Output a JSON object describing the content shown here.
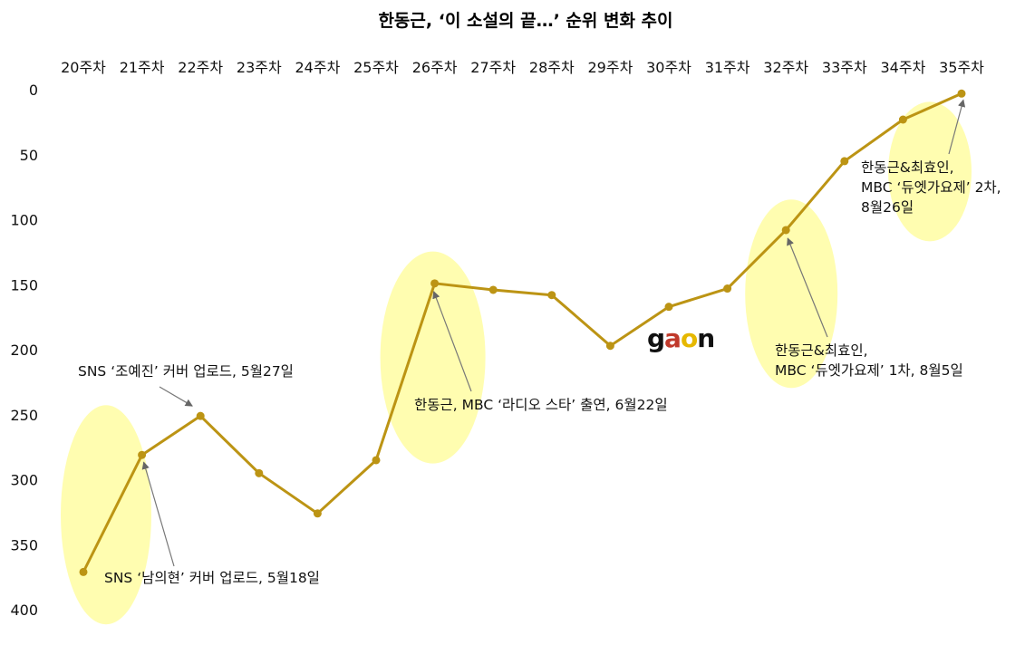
{
  "chart_data": {
    "type": "line",
    "title": "한동근, ‘이 소설의 끝…’ 순위 변화 추이",
    "categories": [
      "20주차",
      "21주차",
      "22주차",
      "23주차",
      "24주차",
      "25주차",
      "26주차",
      "27주차",
      "28주차",
      "29주차",
      "30주차",
      "31주차",
      "32주차",
      "33주차",
      "34주차",
      "35주차"
    ],
    "series": [
      {
        "values": [
          371,
          281,
          251,
          295,
          326,
          285,
          149,
          154,
          158,
          197,
          167,
          153,
          108,
          55,
          23,
          3
        ]
      }
    ],
    "ylim": [
      0,
      400
    ],
    "yticks": [
      0,
      50,
      100,
      150,
      200,
      250,
      300,
      350,
      400
    ],
    "y_inverted": true,
    "x_axis_position": "top",
    "grid": false,
    "line_color": "#BC9414",
    "highlight_color": "#FFFDB0",
    "highlights": [
      {
        "center_x": "20주차",
        "center_y": 327
      },
      {
        "center_x": "26주차",
        "center_y": 206
      },
      {
        "center_x": "32주차",
        "center_y": 157
      },
      {
        "center_x": "35주차",
        "center_y": 63
      }
    ],
    "annotations": [
      {
        "lines": [
          "SNS ‘남의현’ 커버 업로드, 5월18일"
        ],
        "target_x": "21주차",
        "target_y": 281
      },
      {
        "lines": [
          "SNS ‘조예진’ 커버 업로드, 5월27일"
        ],
        "target_x": "22주차",
        "target_y": 251
      },
      {
        "lines": [
          "한동근, MBC ‘라디오 스타’ 출연, 6월22일"
        ],
        "target_x": "26주차",
        "target_y": 149
      },
      {
        "lines": [
          "한동근&최효인,",
          "MBC ‘듀엣가요제’ 1차, 8월5일"
        ],
        "target_x": "32주차",
        "target_y": 108
      },
      {
        "lines": [
          "한동근&최효인,",
          "MBC ‘듀엣가요제’ 2차,",
          "8월26일"
        ],
        "target_x": "35주차",
        "target_y": 3
      }
    ],
    "logo": {
      "text": "gaon",
      "colors": [
        "#111111",
        "#C0392B",
        "#E6B800",
        "#111111"
      ]
    }
  }
}
